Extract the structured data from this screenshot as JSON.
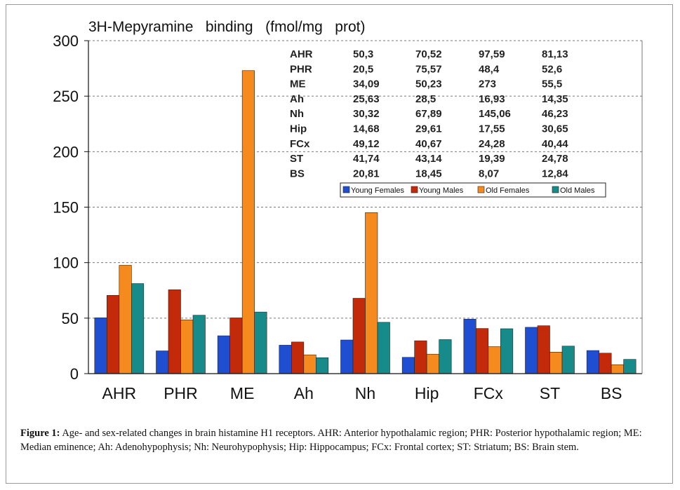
{
  "figure": {
    "caption_label": "Figure 1:",
    "caption_text": " Age- and sex-related changes in brain histamine H1 receptors. AHR: Anterior hypothalamic region; PHR: Posterior hypothalamic region; ME: Median eminence; Ah: Adenohypophysis; Nh: Neurohypophysis; Hip: Hippocampus; FCx: Frontal cortex; ST: Striatum; BS: Brain stem."
  },
  "chart_data": {
    "type": "bar",
    "title": "3H-Mepyramine   binding   (fmol/mg   prot)",
    "xlabel": "",
    "ylabel": "",
    "ylim": [
      0,
      300
    ],
    "yticks": [
      0,
      50,
      100,
      150,
      200,
      250,
      300
    ],
    "grid": true,
    "legend_position": "top-right",
    "categories": [
      "AHR",
      "PHR",
      "ME",
      "Ah",
      "Nh",
      "Hip",
      "FCx",
      "ST",
      "BS"
    ],
    "series": [
      {
        "name": "Young   Females",
        "color": "#1f4fd0",
        "values": [
          50.3,
          20.5,
          34.09,
          25.63,
          30.32,
          14.68,
          49.12,
          41.74,
          20.81
        ]
      },
      {
        "name": "Young   Males",
        "color": "#c22a0a",
        "values": [
          70.52,
          75.57,
          50.23,
          28.5,
          67.89,
          29.61,
          40.67,
          43.14,
          18.45
        ]
      },
      {
        "name": "Old   Females",
        "color": "#f58a1f",
        "values": [
          97.59,
          48.4,
          273,
          16.93,
          145.06,
          17.55,
          24.28,
          19.39,
          8.07
        ]
      },
      {
        "name": "Old   Males",
        "color": "#178a8a",
        "values": [
          81.13,
          52.6,
          55.5,
          14.35,
          46.23,
          30.65,
          40.44,
          24.78,
          12.84
        ]
      }
    ],
    "data_table": [
      [
        "AHR",
        "50,3",
        "70,52",
        "97,59",
        "81,13"
      ],
      [
        "PHR",
        "20,5",
        "75,57",
        "48,4",
        "52,6"
      ],
      [
        "ME",
        "34,09",
        "50,23",
        "273",
        "55,5"
      ],
      [
        "Ah",
        "25,63",
        "28,5",
        "16,93",
        "14,35"
      ],
      [
        "Nh",
        "30,32",
        "67,89",
        "145,06",
        "46,23"
      ],
      [
        "Hip",
        "14,68",
        "29,61",
        "17,55",
        "30,65"
      ],
      [
        "FCx",
        "49,12",
        "40,67",
        "24,28",
        "40,44"
      ],
      [
        "ST",
        "41,74",
        "43,14",
        "19,39",
        "24,78"
      ],
      [
        "BS",
        "20,81",
        "18,45",
        "8,07",
        "12,84"
      ]
    ]
  }
}
